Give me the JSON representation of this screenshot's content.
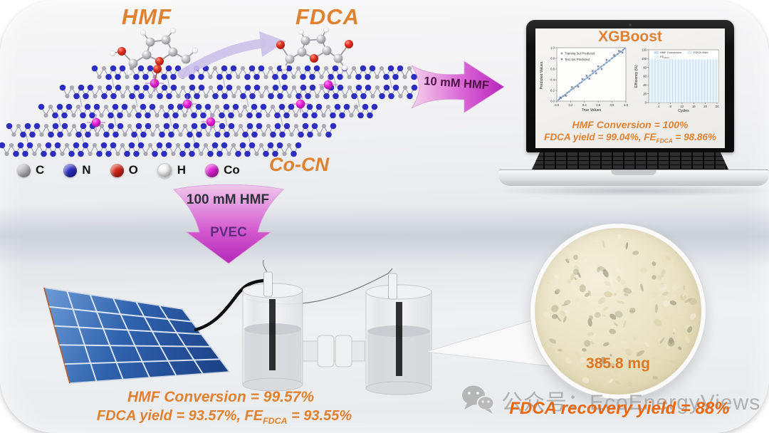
{
  "molecule_labels": {
    "hmf": "HMF",
    "fdca": "FDCA",
    "catalyst": "Co-CN"
  },
  "atom_legend": [
    {
      "symbol": "C",
      "color": "#b9b9be"
    },
    {
      "symbol": "N",
      "color": "#2a2ac2"
    },
    {
      "symbol": "O",
      "color": "#d42318"
    },
    {
      "symbol": "H",
      "color": "#f8f8f8"
    },
    {
      "symbol": "Co",
      "color": "#e01ed6"
    }
  ],
  "flow_arrows": {
    "to_laptop": "10 mM HMF",
    "down_feed": "100 mM HMF",
    "down_device": "PVEC"
  },
  "laptop": {
    "title": "XGBoost",
    "result_line1": "HMF Conversion = 100%",
    "result_line2": {
      "prefix": "FDCA yield = 99.04%, FE",
      "sub": "FDCA",
      "suffix": " = 98.86%"
    }
  },
  "chart_data": [
    {
      "type": "scatter",
      "xlabel": "True Values",
      "ylabel": "Predicted Values",
      "xlim": [
        0,
        1
      ],
      "ylim": [
        0,
        1
      ],
      "xticks": [
        0,
        0.2,
        0.4,
        0.6,
        0.8,
        1.0
      ],
      "yticks": [
        0,
        0.2,
        0.4,
        0.6,
        0.8,
        1.0
      ],
      "identity_line": true,
      "legend_position": "upper-left",
      "series": [
        {
          "name": "Training Set Predicted",
          "marker": "circle",
          "color": "#8ea6cc",
          "points": [
            [
              0.03,
              0.032
            ],
            [
              0.06,
              0.055
            ],
            [
              0.09,
              0.095
            ],
            [
              0.12,
              0.118
            ],
            [
              0.15,
              0.155
            ],
            [
              0.18,
              0.178
            ],
            [
              0.21,
              0.215
            ],
            [
              0.24,
              0.238
            ],
            [
              0.27,
              0.272
            ],
            [
              0.3,
              0.3
            ],
            [
              0.33,
              0.335
            ],
            [
              0.36,
              0.355
            ],
            [
              0.4,
              0.405
            ],
            [
              0.44,
              0.438
            ],
            [
              0.48,
              0.483
            ],
            [
              0.52,
              0.518
            ],
            [
              0.56,
              0.562
            ],
            [
              0.6,
              0.598
            ],
            [
              0.64,
              0.645
            ],
            [
              0.68,
              0.678
            ],
            [
              0.72,
              0.722
            ],
            [
              0.76,
              0.757
            ],
            [
              0.8,
              0.803
            ],
            [
              0.84,
              0.838
            ],
            [
              0.88,
              0.882
            ],
            [
              0.92,
              0.923
            ],
            [
              0.96,
              0.958
            ],
            [
              0.98,
              0.985
            ]
          ]
        },
        {
          "name": "Test Set Predicted",
          "marker": "cross",
          "color": "#55577f",
          "points": [
            [
              0.05,
              0.07
            ],
            [
              0.13,
              0.1
            ],
            [
              0.22,
              0.26
            ],
            [
              0.31,
              0.27
            ],
            [
              0.37,
              0.41
            ],
            [
              0.43,
              0.475
            ],
            [
              0.47,
              0.42
            ],
            [
              0.52,
              0.565
            ],
            [
              0.57,
              0.52
            ],
            [
              0.6,
              0.65
            ],
            [
              0.65,
              0.6
            ],
            [
              0.72,
              0.77
            ],
            [
              0.83,
              0.86
            ],
            [
              0.9,
              0.94
            ],
            [
              0.95,
              0.91
            ]
          ]
        }
      ]
    },
    {
      "type": "bar",
      "xlabel": "Cycles",
      "ylabel": "Efficiency (%)",
      "ylim": [
        0,
        120
      ],
      "yticks": [
        0,
        20,
        40,
        60,
        80,
        100,
        120
      ],
      "xticks": [
        4,
        8,
        12,
        16,
        20,
        24
      ],
      "cycles": 24,
      "series": [
        {
          "name": "HMF Conversion",
          "color": "#c9ddee",
          "values": [
            100,
            100,
            100,
            100,
            100,
            100,
            100,
            100,
            100,
            100,
            100,
            100,
            100,
            100,
            100,
            100,
            100,
            100,
            100,
            100,
            100,
            100,
            100,
            100
          ]
        },
        {
          "name": "FDCA Yield",
          "color": "#ddeef6",
          "values": [
            99.1,
            98.9,
            99.2,
            99.0,
            98.8,
            99.1,
            99.0,
            98.7,
            99.2,
            99.0,
            98.9,
            99.1,
            98.8,
            99.0,
            99.1,
            98.9,
            99.0,
            99.2,
            98.8,
            99.0,
            99.1,
            98.9,
            99.0,
            98.8
          ]
        },
        {
          "name": "FE_FDCA",
          "color": "#eaf5fa",
          "values": [
            98.9,
            98.6,
            98.8,
            98.9,
            98.5,
            98.8,
            98.7,
            98.4,
            98.9,
            98.7,
            98.6,
            98.8,
            98.5,
            98.7,
            98.8,
            98.6,
            98.7,
            98.9,
            98.5,
            98.7,
            98.8,
            98.6,
            98.7,
            98.5
          ]
        }
      ]
    }
  ],
  "pv_results": {
    "line1": "HMF Conversion = 99.57%",
    "line2": {
      "prefix": "FDCA yield = 93.57%, FE",
      "sub": "FDCA",
      "suffix": " = 93.55%"
    }
  },
  "product": {
    "mass": "385.8 mg",
    "recovery": "FDCA recovery yield = 88%"
  },
  "watermark": {
    "text": "公众号：EcoEnergyViews"
  }
}
